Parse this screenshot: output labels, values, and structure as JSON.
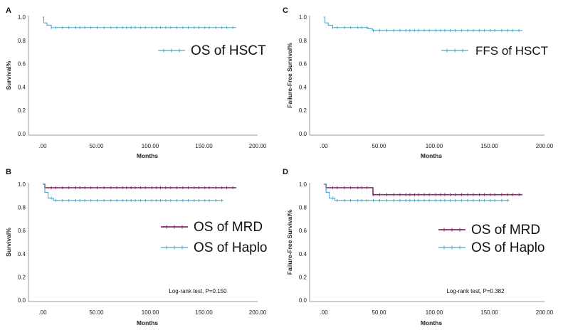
{
  "colors": {
    "teal": "#4aa8c7",
    "purple": "#8e2a6c",
    "axis": "#9a9a9a",
    "text": "#222222"
  },
  "chart_data": [
    {
      "type": "line",
      "panel": "A",
      "xlabel": "Months",
      "ylabel": "Survival%",
      "xlim": [
        0,
        200
      ],
      "ylim": [
        0,
        1.0
      ],
      "xticks": [
        ".00",
        "50.00",
        "100.00",
        "150.00",
        "200.00"
      ],
      "yticks": [
        "0.0",
        "0.2",
        "0.4",
        "0.6",
        "0.8",
        "1.0"
      ],
      "series": [
        {
          "name": "OS of HSCT",
          "color": "#4aa8c7",
          "steps": [
            [
              0,
              1.0
            ],
            [
              1,
              0.95
            ],
            [
              4,
              0.93
            ],
            [
              8,
              0.91
            ],
            [
              180,
              0.91
            ]
          ]
        }
      ],
      "annotation": ""
    },
    {
      "type": "line",
      "panel": "C",
      "xlabel": "Months",
      "ylabel": "Failure-Free Survival%",
      "xlim": [
        0,
        200
      ],
      "ylim": [
        0,
        1.0
      ],
      "xticks": [
        ".00",
        "50.00",
        "100.00",
        "150.00",
        "200.00"
      ],
      "yticks": [
        "0.0",
        "0.2",
        "0.4",
        "0.6",
        "0.8",
        "1.0"
      ],
      "series": [
        {
          "name": "FFS of HSCT",
          "color": "#4aa8c7",
          "steps": [
            [
              0,
              1.0
            ],
            [
              1,
              0.95
            ],
            [
              4,
              0.93
            ],
            [
              8,
              0.91
            ],
            [
              40,
              0.9
            ],
            [
              44,
              0.885
            ],
            [
              180,
              0.885
            ]
          ]
        }
      ],
      "annotation": ""
    },
    {
      "type": "line",
      "panel": "B",
      "xlabel": "Months",
      "ylabel": "Survival%",
      "xlim": [
        0,
        200
      ],
      "ylim": [
        0,
        1.0
      ],
      "xticks": [
        ".00",
        "50.00",
        "100.00",
        "150.00",
        "200.00"
      ],
      "yticks": [
        "0.0",
        "0.2",
        "0.4",
        "0.6",
        "0.8",
        "1.0"
      ],
      "series": [
        {
          "name": "OS of MRD",
          "color": "#8e2a6c",
          "steps": [
            [
              0,
              1.0
            ],
            [
              2,
              0.97
            ],
            [
              180,
              0.97
            ]
          ]
        },
        {
          "name": "OS of Haplo",
          "color": "#4aa8c7",
          "steps": [
            [
              0,
              1.0
            ],
            [
              2,
              0.93
            ],
            [
              5,
              0.88
            ],
            [
              10,
              0.86
            ],
            [
              168,
              0.86
            ]
          ]
        }
      ],
      "annotation": "Log-rank test, P=0.150"
    },
    {
      "type": "line",
      "panel": "D",
      "xlabel": "Months",
      "ylabel": "Failure-Free Survival%",
      "xlim": [
        0,
        200
      ],
      "ylim": [
        0,
        1.0
      ],
      "xticks": [
        ".00",
        "50.00",
        "100.00",
        "150.00",
        "200.00"
      ],
      "yticks": [
        "0.0",
        "0.2",
        "0.4",
        "0.6",
        "0.8",
        "1.0"
      ],
      "series": [
        {
          "name": "OS of MRD",
          "color": "#8e2a6c",
          "steps": [
            [
              0,
              1.0
            ],
            [
              2,
              0.97
            ],
            [
              44,
              0.97
            ],
            [
              44.5,
              0.91
            ],
            [
              180,
              0.91
            ]
          ]
        },
        {
          "name": "OS of Haplo",
          "color": "#4aa8c7",
          "steps": [
            [
              0,
              1.0
            ],
            [
              2,
              0.93
            ],
            [
              5,
              0.88
            ],
            [
              10,
              0.86
            ],
            [
              168,
              0.86
            ]
          ]
        }
      ],
      "annotation": "Log-rank test, P=0.382"
    }
  ]
}
